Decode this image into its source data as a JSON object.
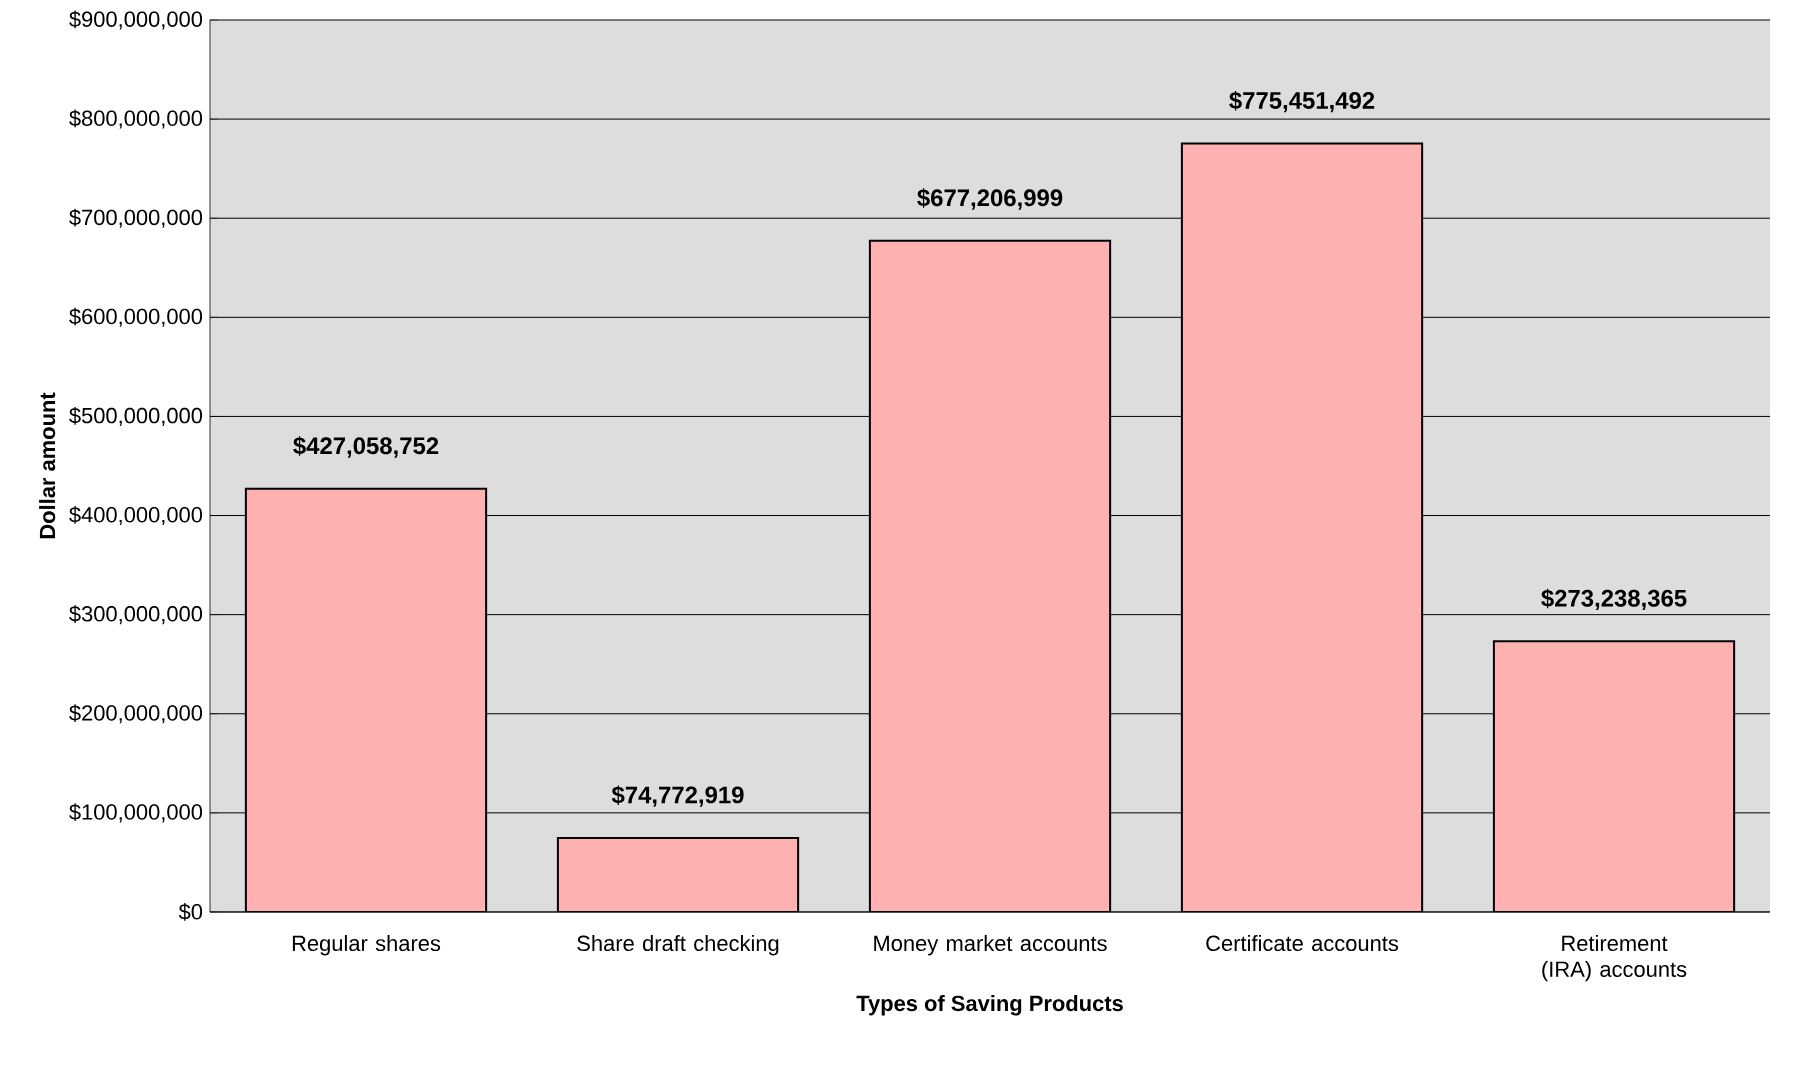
{
  "chart_data": {
    "type": "bar",
    "xlabel": "Types of Saving Products",
    "ylabel": "Dollar amount",
    "categories": [
      "Regular shares",
      "Share draft checking",
      "Money market accounts",
      "Certificate accounts",
      "Retirement (IRA) accounts"
    ],
    "values": [
      427058752,
      74772919,
      677206999,
      775451492,
      273238365
    ],
    "value_labels": [
      "$427,058,752",
      "$74,772,919",
      "$677,206,999",
      "$775,451,492",
      "$273,238,365"
    ],
    "color": "#ffb0b0",
    "ylim": [
      0,
      900000000
    ],
    "yticks": [
      {
        "value": 0,
        "label": "$0"
      },
      {
        "value": 100000000,
        "label": "$100,000,000"
      },
      {
        "value": 200000000,
        "label": "$200,000,000"
      },
      {
        "value": 300000000,
        "label": "$300,000,000"
      },
      {
        "value": 400000000,
        "label": "$400,000,000"
      },
      {
        "value": 500000000,
        "label": "$500,000,000"
      },
      {
        "value": 600000000,
        "label": "$600,000,000"
      },
      {
        "value": 700000000,
        "label": "$700,000,000"
      },
      {
        "value": 800000000,
        "label": "$800,000,000"
      },
      {
        "value": 900000000,
        "label": "$900,000,000"
      }
    ],
    "grid": "y"
  }
}
